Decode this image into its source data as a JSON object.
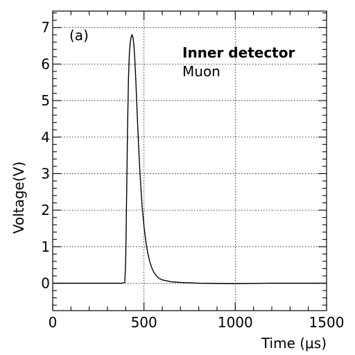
{
  "chart_data": {
    "type": "line",
    "panel_label": "(a)",
    "annotation_title": "Inner detector",
    "annotation_subtitle": "Muon",
    "xlabel": "Time (μs)",
    "ylabel": "Voltage(V)",
    "xlim": [
      0,
      1500
    ],
    "ylim": [
      -0.75,
      7.45
    ],
    "x_ticks": [
      0,
      500,
      1000,
      1500
    ],
    "x_tick_labels": [
      "0",
      "500",
      "1000",
      "1500"
    ],
    "y_ticks": [
      0,
      1,
      2,
      3,
      4,
      5,
      6,
      7
    ],
    "y_tick_labels": [
      "0",
      "1",
      "2",
      "3",
      "4",
      "5",
      "6",
      "7"
    ],
    "grid": true,
    "series": [
      {
        "x": [
          0,
          100,
          200,
          300,
          380,
          395,
          400,
          405,
          410,
          415,
          420,
          425,
          430,
          435,
          440,
          445,
          450,
          455,
          460,
          465,
          470,
          475,
          480,
          490,
          500,
          510,
          520,
          530,
          540,
          550,
          560,
          580,
          600,
          650,
          700,
          800,
          1000,
          1200,
          1500
        ],
        "values": [
          0.0,
          0.0,
          0.0,
          0.0,
          0.0,
          0.02,
          0.6,
          2.5,
          4.3,
          5.6,
          6.3,
          6.6,
          6.75,
          6.8,
          6.72,
          6.5,
          6.1,
          5.6,
          5.0,
          4.4,
          3.8,
          3.3,
          2.85,
          2.1,
          1.55,
          1.15,
          0.85,
          0.62,
          0.46,
          0.34,
          0.25,
          0.14,
          0.09,
          0.04,
          0.02,
          0.0,
          -0.01,
          0.0,
          0.0
        ]
      }
    ]
  }
}
